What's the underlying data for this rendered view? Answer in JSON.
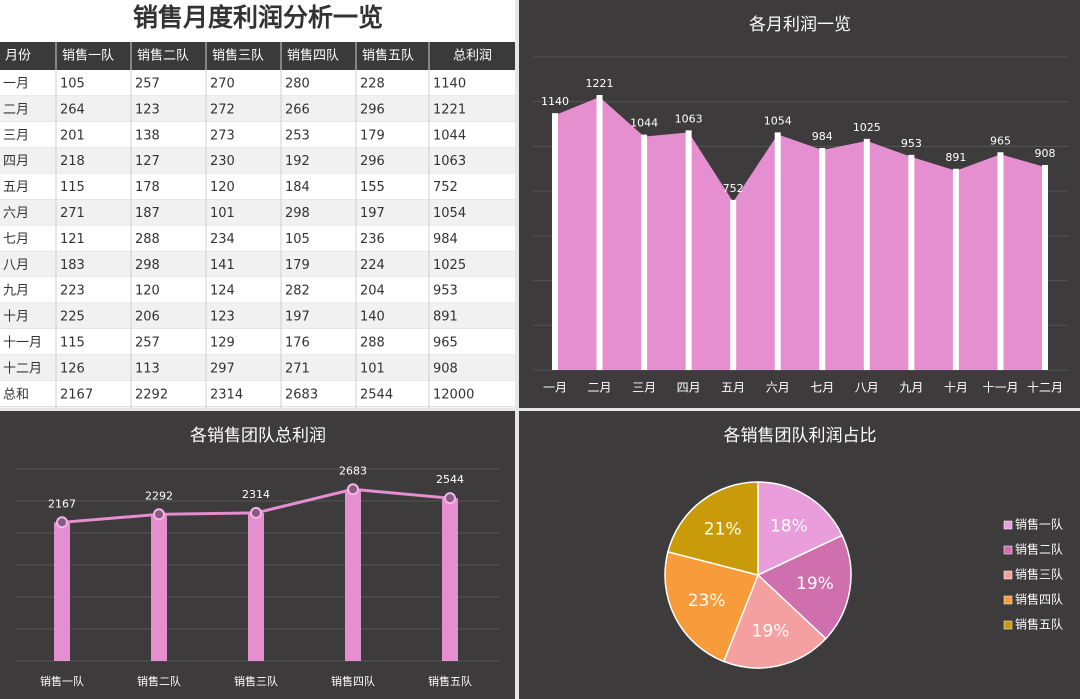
{
  "table": {
    "title": "销售月度利润分析一览",
    "header": [
      "月份",
      "销售一队",
      "销售二队",
      "销售三队",
      "销售四队",
      "销售五队",
      "总利润"
    ],
    "rows": [
      [
        "一月",
        105,
        257,
        270,
        280,
        228,
        1140
      ],
      [
        "二月",
        264,
        123,
        272,
        266,
        296,
        1221
      ],
      [
        "三月",
        201,
        138,
        273,
        253,
        179,
        1044
      ],
      [
        "四月",
        218,
        127,
        230,
        192,
        296,
        1063
      ],
      [
        "五月",
        115,
        178,
        120,
        184,
        155,
        752
      ],
      [
        "六月",
        271,
        187,
        101,
        298,
        197,
        1054
      ],
      [
        "七月",
        121,
        288,
        234,
        105,
        236,
        984
      ],
      [
        "八月",
        183,
        298,
        141,
        179,
        224,
        1025
      ],
      [
        "九月",
        223,
        120,
        124,
        282,
        204,
        953
      ],
      [
        "十月",
        225,
        206,
        123,
        197,
        140,
        891
      ],
      [
        "十一月",
        115,
        257,
        129,
        176,
        288,
        965
      ],
      [
        "十二月",
        126,
        113,
        297,
        271,
        101,
        908
      ],
      [
        "总和",
        2167,
        2292,
        2314,
        2683,
        2544,
        12000
      ]
    ]
  },
  "chart_data": [
    {
      "type": "area",
      "title": "各月利润一览",
      "categories": [
        "一月",
        "二月",
        "三月",
        "四月",
        "五月",
        "六月",
        "七月",
        "八月",
        "九月",
        "十月",
        "十一月",
        "十二月"
      ],
      "values": [
        1140,
        1221,
        1044,
        1063,
        752,
        1054,
        984,
        1025,
        953,
        891,
        965,
        908
      ],
      "color": "#e58fd0",
      "ylim": [
        0,
        1400
      ],
      "yticks": [
        0,
        200,
        400,
        600,
        800,
        1000,
        1200,
        1400
      ],
      "grid": true
    },
    {
      "type": "combo",
      "title": "各销售团队总利润",
      "categories": [
        "销售一队",
        "销售二队",
        "销售三队",
        "销售四队",
        "销售五队"
      ],
      "values": [
        2167,
        2292,
        2314,
        2683,
        2544
      ],
      "color": "#e58fd0",
      "ylim": [
        0,
        3000
      ],
      "yticks": [
        0,
        500,
        1000,
        1500,
        2000,
        2500,
        3000
      ],
      "grid": true
    },
    {
      "type": "pie",
      "title": "各销售团队利润占比",
      "categories": [
        "销售一队",
        "销售二队",
        "销售三队",
        "销售四队",
        "销售五队"
      ],
      "values": [
        18,
        19,
        19,
        23,
        21
      ],
      "value_labels": [
        "18%",
        "19%",
        "19%",
        "23%",
        "21%"
      ],
      "colors": [
        "#e99edb",
        "#cf6fad",
        "#f5a0a0",
        "#f89b3a",
        "#c99a0a"
      ],
      "legend": "right"
    }
  ]
}
